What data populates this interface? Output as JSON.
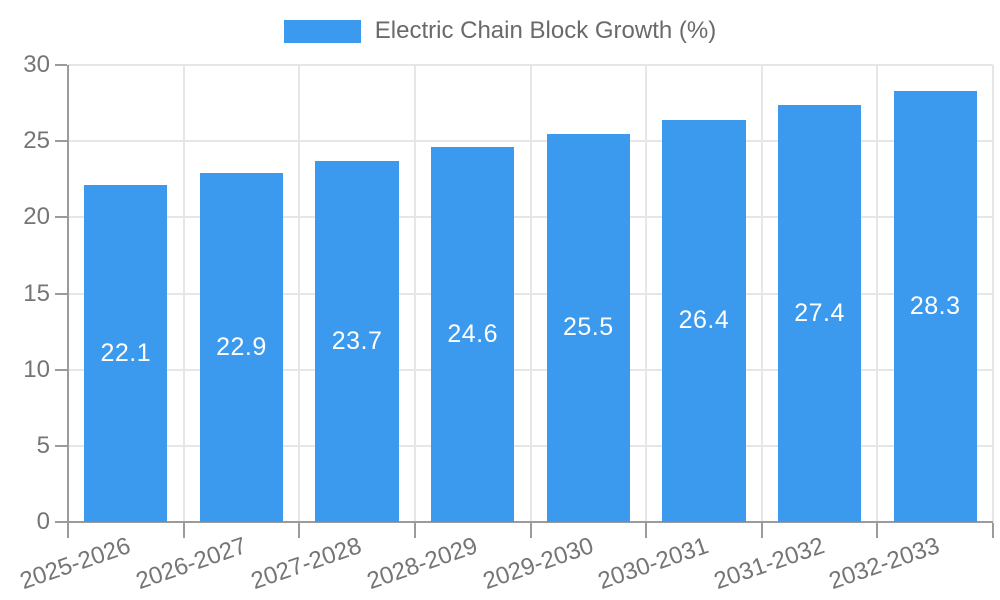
{
  "chart_data": {
    "type": "bar",
    "title": "",
    "legend": {
      "position": "top",
      "label": "Electric Chain Block Growth (%)"
    },
    "categories": [
      "2025-2026",
      "2026-2027",
      "2027-2028",
      "2028-2029",
      "2029-2030",
      "2030-2031",
      "2031-2032",
      "2032-2033"
    ],
    "series": [
      {
        "name": "Electric Chain Block Growth (%)",
        "values": [
          22.1,
          22.9,
          23.7,
          24.6,
          25.5,
          26.4,
          27.4,
          28.3
        ]
      }
    ],
    "value_labels": [
      "22.1",
      "22.9",
      "23.7",
      "24.6",
      "25.5",
      "26.4",
      "27.4",
      "28.3"
    ],
    "xlabel": "",
    "ylabel": "",
    "ylim": [
      0,
      30
    ],
    "yticks": [
      0,
      5,
      10,
      15,
      20,
      25,
      30
    ],
    "grid": true,
    "value_label_position": "inside-center",
    "colors": {
      "bar": "#3B99EE",
      "grid": "#E6E6E6",
      "axis": "#9B9B9B",
      "tick_label": "#757575",
      "value_label": "#FFFFFF",
      "legend_label": "#6A6A6A"
    }
  }
}
